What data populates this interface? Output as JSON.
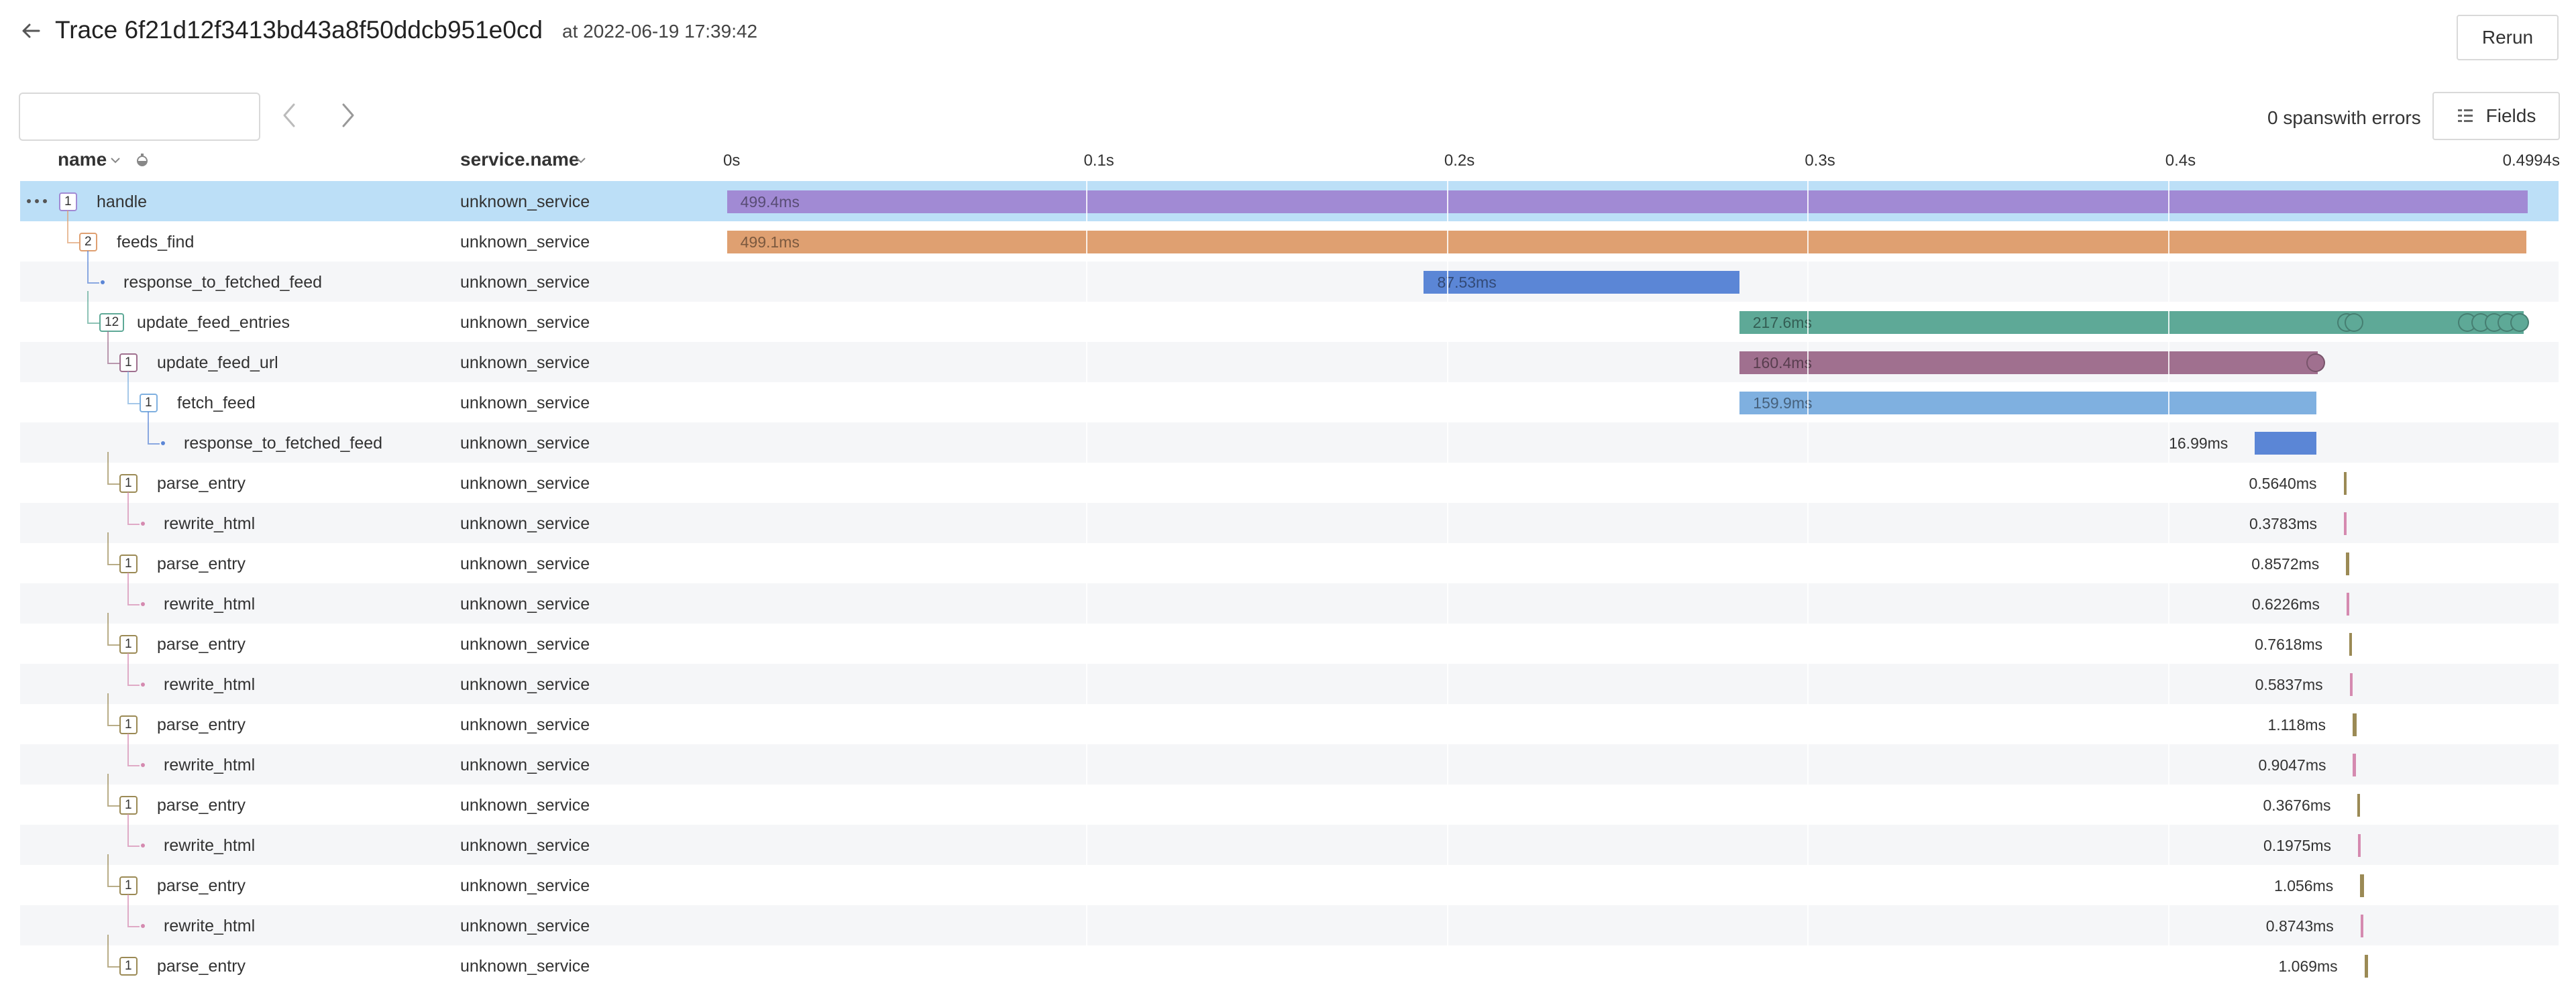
{
  "header": {
    "title": "Trace 6f21d12f3413bd43a8f50ddcb951e0cd",
    "timestamp": "at 2022-06-19 17:39:42",
    "rerun_label": "Rerun"
  },
  "toolbar": {
    "search_value": "",
    "errors_text": "0 spanswith errors",
    "fields_label": "Fields"
  },
  "columns": {
    "name": "name",
    "service": "service.name"
  },
  "timeline": {
    "ticks": [
      "0s",
      "0.1s",
      "0.2s",
      "0.3s",
      "0.4s",
      "0.4994s"
    ],
    "total_seconds": 0.4994
  },
  "colors": {
    "handle": "#a18ad4",
    "feeds_find": "#dfa071",
    "response_a": "#5b86d6",
    "update_feed_entries": "#5ea997",
    "update_feed_url": "#a0708f",
    "fetch_feed": "#7fb0e0",
    "parse_entry": "#9b8a55",
    "rewrite_html": "#d58ab0",
    "selected_row": "#bcdff7"
  },
  "spans": [
    {
      "name": "handle",
      "service": "unknown_service",
      "count": "1",
      "depth": 0,
      "start_ms": 0.3,
      "duration_ms": 499.4,
      "label": "499.4ms",
      "color": "#a18ad4",
      "label_inside": true
    },
    {
      "name": "feeds_find",
      "service": "unknown_service",
      "count": "2",
      "depth": 1,
      "start_ms": 0.3,
      "duration_ms": 499.1,
      "label": "499.1ms",
      "color": "#dfa071",
      "label_inside": true
    },
    {
      "name": "response_to_fetched_feed",
      "service": "unknown_service",
      "count": "",
      "depth": 2,
      "start_ms": 193.6,
      "duration_ms": 87.53,
      "label": "87.53ms",
      "color": "#5b86d6",
      "label_inside": true
    },
    {
      "name": "update_feed_entries",
      "service": "unknown_service",
      "count": "12",
      "depth": 2,
      "start_ms": 281.1,
      "duration_ms": 217.6,
      "label": "217.6ms",
      "color": "#5ea997",
      "label_inside": true
    },
    {
      "name": "update_feed_url",
      "service": "unknown_service",
      "count": "1",
      "depth": 3,
      "start_ms": 281.1,
      "duration_ms": 160.4,
      "label": "160.4ms",
      "color": "#a0708f",
      "label_inside": true
    },
    {
      "name": "fetch_feed",
      "service": "unknown_service",
      "count": "1",
      "depth": 4,
      "start_ms": 281.2,
      "duration_ms": 159.9,
      "label": "159.9ms",
      "color": "#7fb0e0",
      "label_inside": true
    },
    {
      "name": "response_to_fetched_feed",
      "service": "unknown_service",
      "count": "",
      "depth": 5,
      "start_ms": 424.1,
      "duration_ms": 16.99,
      "label": "16.99ms",
      "color": "#5b86d6",
      "label_inside": false
    },
    {
      "name": "parse_entry",
      "service": "unknown_service",
      "count": "1",
      "depth": 3,
      "start_ms": 448.7,
      "duration_ms": 0.564,
      "label": "0.5640ms",
      "color": "#9b8a55",
      "label_inside": false
    },
    {
      "name": "rewrite_html",
      "service": "unknown_service",
      "count": "",
      "depth": 4,
      "start_ms": 448.8,
      "duration_ms": 0.3783,
      "label": "0.3783ms",
      "color": "#d58ab0",
      "label_inside": false
    },
    {
      "name": "parse_entry",
      "service": "unknown_service",
      "count": "1",
      "depth": 3,
      "start_ms": 449.4,
      "duration_ms": 0.8572,
      "label": "0.8572ms",
      "color": "#9b8a55",
      "label_inside": false
    },
    {
      "name": "rewrite_html",
      "service": "unknown_service",
      "count": "",
      "depth": 4,
      "start_ms": 449.5,
      "duration_ms": 0.6226,
      "label": "0.6226ms",
      "color": "#d58ab0",
      "label_inside": false
    },
    {
      "name": "parse_entry",
      "service": "unknown_service",
      "count": "1",
      "depth": 3,
      "start_ms": 450.3,
      "duration_ms": 0.7618,
      "label": "0.7618ms",
      "color": "#9b8a55",
      "label_inside": false
    },
    {
      "name": "rewrite_html",
      "service": "unknown_service",
      "count": "",
      "depth": 4,
      "start_ms": 450.4,
      "duration_ms": 0.5837,
      "label": "0.5837ms",
      "color": "#d58ab0",
      "label_inside": false
    },
    {
      "name": "parse_entry",
      "service": "unknown_service",
      "count": "1",
      "depth": 3,
      "start_ms": 451.2,
      "duration_ms": 1.118,
      "label": "1.118ms",
      "color": "#9b8a55",
      "label_inside": false
    },
    {
      "name": "rewrite_html",
      "service": "unknown_service",
      "count": "",
      "depth": 4,
      "start_ms": 451.3,
      "duration_ms": 0.9047,
      "label": "0.9047ms",
      "color": "#d58ab0",
      "label_inside": false
    },
    {
      "name": "parse_entry",
      "service": "unknown_service",
      "count": "1",
      "depth": 3,
      "start_ms": 452.6,
      "duration_ms": 0.3676,
      "label": "0.3676ms",
      "color": "#9b8a55",
      "label_inside": false
    },
    {
      "name": "rewrite_html",
      "service": "unknown_service",
      "count": "",
      "depth": 4,
      "start_ms": 452.7,
      "duration_ms": 0.1975,
      "label": "0.1975ms",
      "color": "#d58ab0",
      "label_inside": false
    },
    {
      "name": "parse_entry",
      "service": "unknown_service",
      "count": "1",
      "depth": 3,
      "start_ms": 453.3,
      "duration_ms": 1.056,
      "label": "1.056ms",
      "color": "#9b8a55",
      "label_inside": false
    },
    {
      "name": "rewrite_html",
      "service": "unknown_service",
      "count": "",
      "depth": 4,
      "start_ms": 453.4,
      "duration_ms": 0.8743,
      "label": "0.8743ms",
      "color": "#d58ab0",
      "label_inside": false
    },
    {
      "name": "parse_entry",
      "service": "unknown_service",
      "count": "1",
      "depth": 3,
      "start_ms": 454.5,
      "duration_ms": 1.069,
      "label": "1.069ms",
      "color": "#9b8a55",
      "label_inside": false
    }
  ]
}
